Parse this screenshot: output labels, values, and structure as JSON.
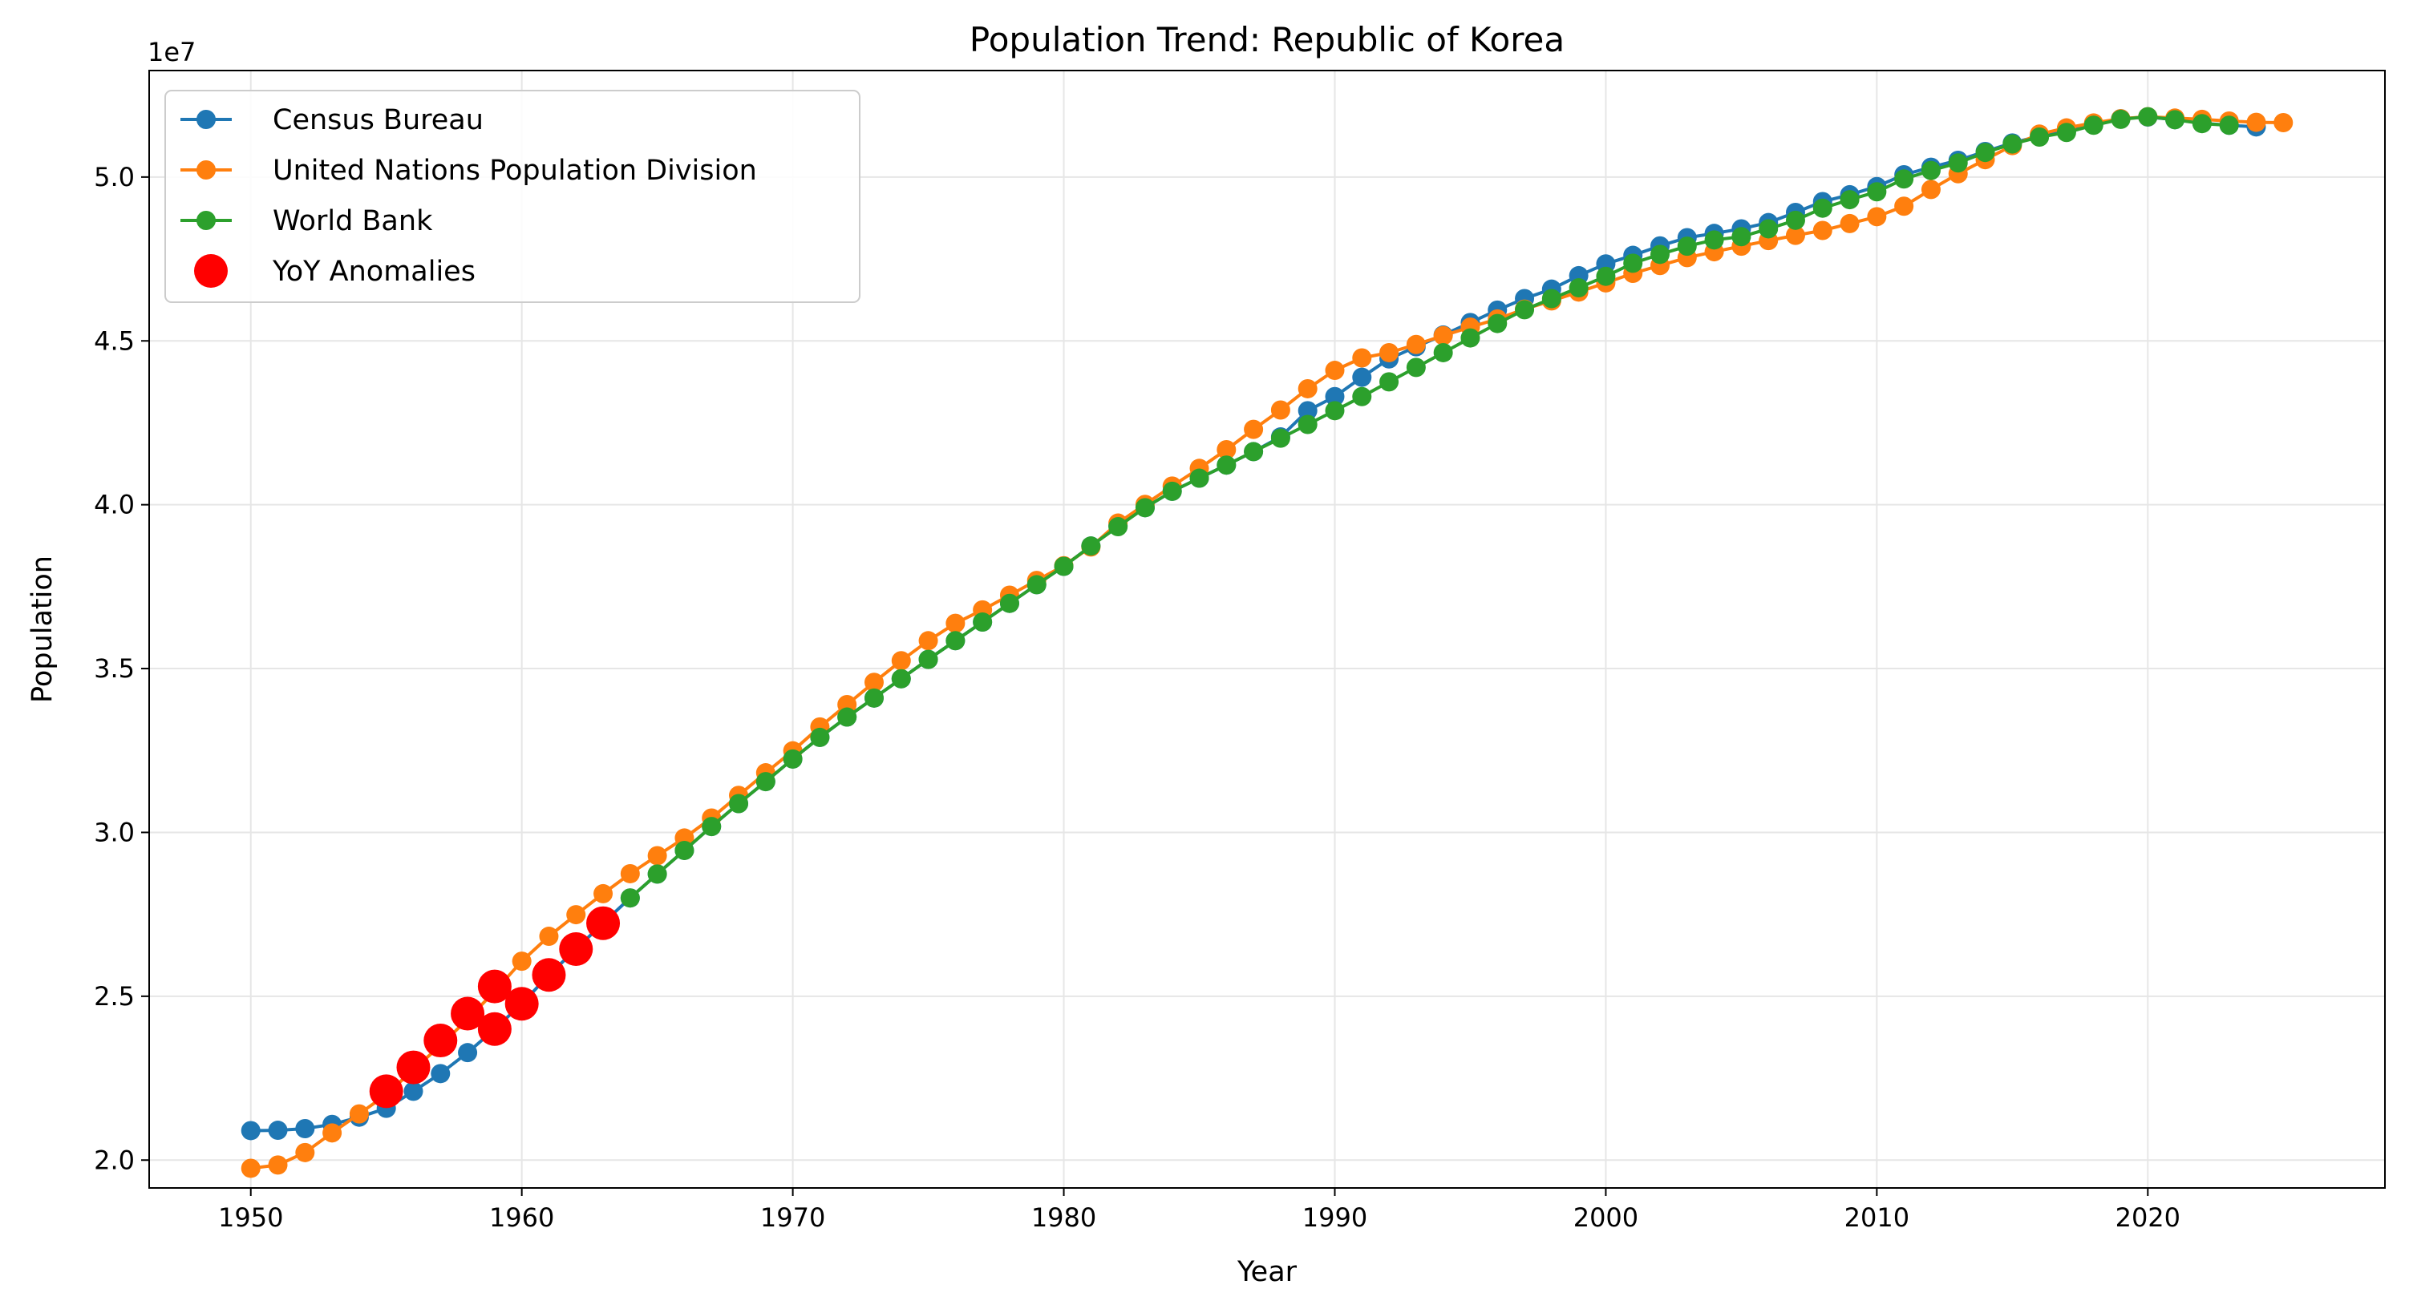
{
  "chart_data": {
    "type": "line",
    "title": "Population Trend: Republic of Korea",
    "xlabel": "Year",
    "ylabel": "Population",
    "y_offset_label": "1e7",
    "xlim": [
      1946.25,
      2028.75
    ],
    "ylim": [
      19150000.0,
      53250000.0
    ],
    "x_ticks": [
      1950,
      1960,
      1970,
      1980,
      1990,
      2000,
      2010,
      2020
    ],
    "x_tick_labels": [
      "1950",
      "1960",
      "1970",
      "1980",
      "1990",
      "2000",
      "2010",
      "2020"
    ],
    "y_ticks": [
      20000000.0,
      25000000.0,
      30000000.0,
      35000000.0,
      40000000.0,
      45000000.0,
      50000000.0
    ],
    "y_tick_labels": [
      "2.0",
      "2.5",
      "3.0",
      "3.5",
      "4.0",
      "4.5",
      "5.0"
    ],
    "grid": true,
    "legend_position": "top-left",
    "series": [
      {
        "name": "Census Bureau",
        "color": "#1f77b4",
        "x": [
          1950,
          1951,
          1952,
          1953,
          1954,
          1955,
          1956,
          1957,
          1958,
          1959,
          1960,
          1961,
          1962,
          1963,
          1964,
          1965,
          1966,
          1967,
          1968,
          1969,
          1970,
          1971,
          1972,
          1973,
          1974,
          1975,
          1976,
          1977,
          1978,
          1979,
          1980,
          1981,
          1982,
          1983,
          1984,
          1985,
          1986,
          1987,
          1988,
          1989,
          1990,
          1991,
          1992,
          1993,
          1994,
          1995,
          1996,
          1997,
          1998,
          1999,
          2000,
          2001,
          2002,
          2003,
          2004,
          2005,
          2006,
          2007,
          2008,
          2009,
          2010,
          2011,
          2012,
          2013,
          2014,
          2015,
          2016,
          2017,
          2018,
          2019,
          2020,
          2021,
          2022,
          2023,
          2024
        ],
        "values": [
          20900000,
          20910000,
          20960000,
          21090000,
          21310000,
          21580000,
          22100000,
          22640000,
          23280000,
          24000000,
          24770000,
          25650000,
          26440000,
          27230000,
          28000000,
          28730000,
          29450000,
          30180000,
          30880000,
          31550000,
          32240000,
          32900000,
          33520000,
          34100000,
          34690000,
          35280000,
          35850000,
          36420000,
          36990000,
          37560000,
          38120000,
          38740000,
          39360000,
          39910000,
          40410000,
          40810000,
          41210000,
          41620000,
          42070000,
          42870000,
          43300000,
          43890000,
          44450000,
          44820000,
          45180000,
          45560000,
          45940000,
          46290000,
          46580000,
          46990000,
          47350000,
          47610000,
          47900000,
          48150000,
          48280000,
          48420000,
          48610000,
          48920000,
          49250000,
          49460000,
          49710000,
          50070000,
          50300000,
          50510000,
          50780000,
          51040000,
          51250000,
          51420000,
          51600000,
          51780000,
          51830000,
          51750000,
          51640000,
          51580000,
          51530000
        ]
      },
      {
        "name": "United Nations Population Division",
        "color": "#ff7f0e",
        "x": [
          1950,
          1951,
          1952,
          1953,
          1954,
          1955,
          1956,
          1957,
          1958,
          1959,
          1960,
          1961,
          1962,
          1963,
          1964,
          1965,
          1966,
          1967,
          1968,
          1969,
          1970,
          1971,
          1972,
          1973,
          1974,
          1975,
          1976,
          1977,
          1978,
          1979,
          1980,
          1981,
          1982,
          1983,
          1984,
          1985,
          1986,
          1987,
          1988,
          1989,
          1990,
          1991,
          1992,
          1993,
          1994,
          1995,
          1996,
          1997,
          1998,
          1999,
          2000,
          2001,
          2002,
          2003,
          2004,
          2005,
          2006,
          2007,
          2008,
          2009,
          2010,
          2011,
          2012,
          2013,
          2014,
          2015,
          2016,
          2017,
          2018,
          2019,
          2020,
          2021,
          2022,
          2023,
          2024,
          2025
        ],
        "values": [
          19750000,
          19850000,
          20230000,
          20830000,
          21410000,
          22000000,
          22760000,
          23500000,
          24300000,
          25150000,
          26070000,
          26830000,
          27490000,
          28130000,
          28740000,
          29290000,
          29830000,
          30440000,
          31130000,
          31820000,
          32490000,
          33220000,
          33900000,
          34580000,
          35240000,
          35850000,
          36380000,
          36790000,
          37240000,
          37690000,
          38140000,
          38710000,
          39440000,
          40010000,
          40570000,
          41110000,
          41680000,
          42300000,
          42890000,
          43540000,
          44100000,
          44480000,
          44640000,
          44890000,
          45160000,
          45420000,
          45670000,
          45970000,
          46220000,
          46490000,
          46770000,
          47060000,
          47300000,
          47540000,
          47720000,
          47890000,
          48060000,
          48220000,
          48370000,
          48580000,
          48790000,
          49110000,
          49620000,
          50100000,
          50530000,
          50960000,
          51310000,
          51500000,
          51650000,
          51780000,
          51840000,
          51800000,
          51760000,
          51710000,
          51670000,
          51660000
        ]
      },
      {
        "name": "World Bank",
        "color": "#2ca02c",
        "x": [
          1964,
          1965,
          1966,
          1967,
          1968,
          1969,
          1970,
          1971,
          1972,
          1973,
          1974,
          1975,
          1976,
          1977,
          1978,
          1979,
          1980,
          1981,
          1982,
          1983,
          1984,
          1985,
          1986,
          1987,
          1988,
          1989,
          1990,
          1991,
          1992,
          1993,
          1994,
          1995,
          1996,
          1997,
          1998,
          1999,
          2000,
          2001,
          2002,
          2003,
          2004,
          2005,
          2006,
          2007,
          2008,
          2009,
          2010,
          2011,
          2012,
          2013,
          2014,
          2015,
          2016,
          2017,
          2018,
          2019,
          2020,
          2021,
          2022,
          2023
        ],
        "values": [
          28000000,
          28730000,
          29450000,
          30180000,
          30880000,
          31550000,
          32240000,
          32900000,
          33520000,
          34100000,
          34690000,
          35280000,
          35850000,
          36420000,
          36990000,
          37560000,
          38120000,
          38740000,
          39330000,
          39910000,
          40410000,
          40810000,
          41210000,
          41620000,
          42030000,
          42450000,
          42870000,
          43300000,
          43750000,
          44190000,
          44640000,
          45090000,
          45530000,
          45950000,
          46290000,
          46620000,
          46970000,
          47370000,
          47640000,
          47890000,
          48080000,
          48180000,
          48420000,
          48680000,
          49050000,
          49310000,
          49550000,
          49940000,
          50200000,
          50430000,
          50750000,
          51010000,
          51220000,
          51360000,
          51580000,
          51760000,
          51840000,
          51750000,
          51630000,
          51580000
        ]
      }
    ],
    "anomalies": {
      "name": "YoY Anomalies",
      "color": "#ff0000",
      "points": [
        {
          "x": 1955,
          "y": 22100000
        },
        {
          "x": 1956,
          "y": 22830000
        },
        {
          "x": 1957,
          "y": 23650000
        },
        {
          "x": 1958,
          "y": 24470000
        },
        {
          "x": 1959,
          "y": 24000000
        },
        {
          "x": 1959,
          "y": 25300000
        },
        {
          "x": 1960,
          "y": 24770000
        },
        {
          "x": 1961,
          "y": 25650000
        },
        {
          "x": 1962,
          "y": 26440000
        },
        {
          "x": 1963,
          "y": 27230000
        }
      ]
    }
  }
}
